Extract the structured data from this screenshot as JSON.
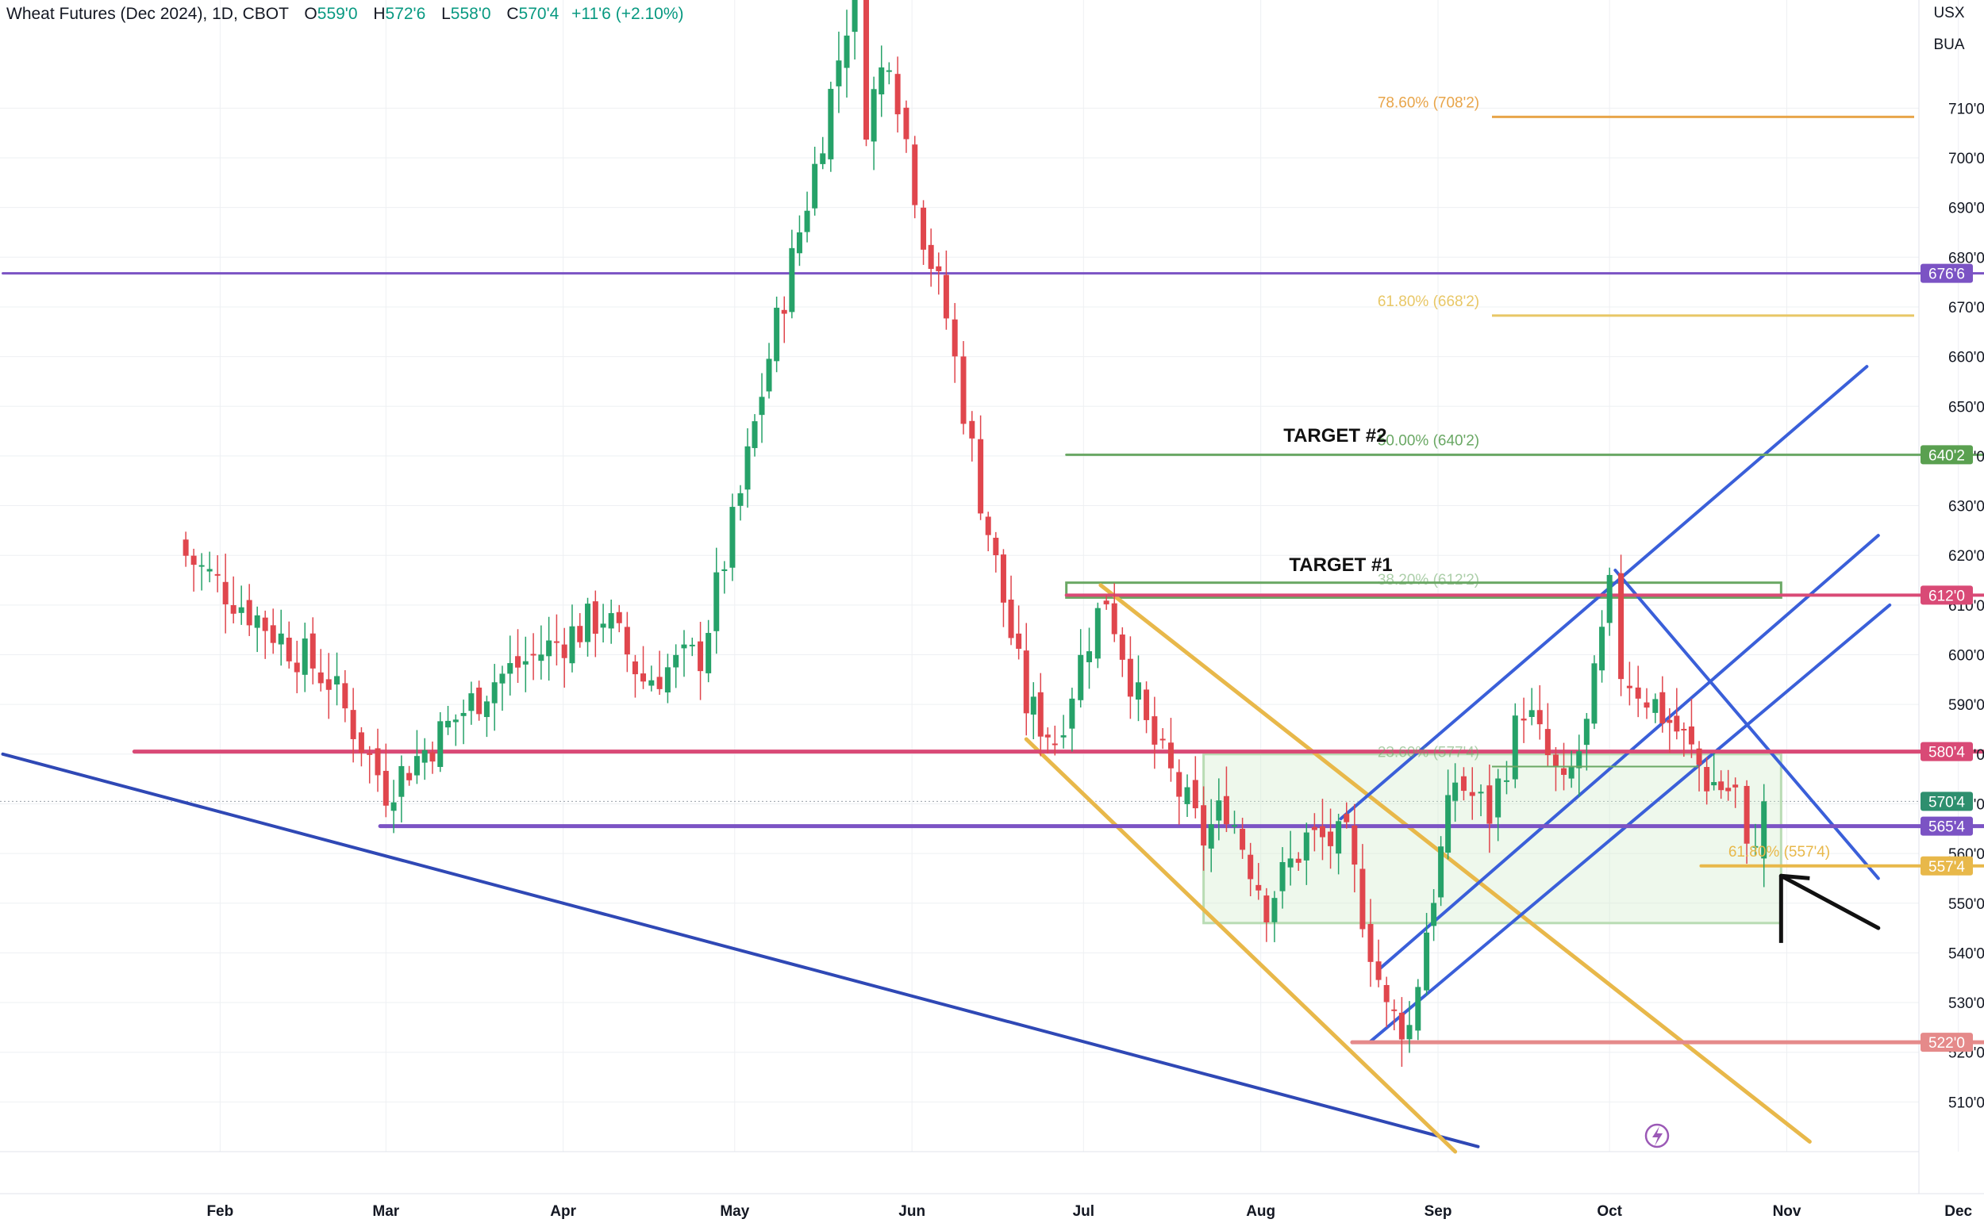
{
  "header": {
    "title": "Wheat Futures (Dec 2024), 1D, CBOT",
    "open_label": "O",
    "open": "559'0",
    "high_label": "H",
    "high": "572'6",
    "low_label": "L",
    "low": "558'0",
    "close_label": "C",
    "close": "570'4",
    "change": "+11'6 (+2.10%)"
  },
  "scale": {
    "currency": "USX",
    "unit": "BUA"
  },
  "colors": {
    "up": "#26a269",
    "down": "#e0464d",
    "purple": "#7b53c4",
    "pink": "#d94a76",
    "green": "#6aa864",
    "gold": "#e8b84a",
    "blue": "#3a5fd9",
    "navy": "#2f48b5",
    "fib_orange": "#e8a54a",
    "fib_yellow": "#e8c766",
    "salmon": "#e58a8a"
  },
  "chart_data": {
    "type": "candlestick",
    "ylim": [
      500,
      722
    ],
    "y_ticks": [
      "510'0",
      "520'0",
      "530'0",
      "540'0",
      "550'0",
      "560'0",
      "570'0",
      "580'0",
      "590'0",
      "600'0",
      "610'0",
      "620'0",
      "630'0",
      "640'0",
      "650'0",
      "660'0",
      "670'0",
      "680'0",
      "690'0",
      "700'0",
      "710'0"
    ],
    "x_ticks": [
      "Feb",
      "Mar",
      "Apr",
      "May",
      "Jun",
      "Jul",
      "Aug",
      "Sep",
      "Oct",
      "Nov",
      "Dec"
    ],
    "annotations": [
      {
        "text": "TARGET #2",
        "date": "2024-08-14",
        "price": 640
      },
      {
        "text": "TARGET #1",
        "date": "2024-08-15",
        "price": 614
      }
    ],
    "fib_levels": [
      {
        "label": "78.60% (708'2)",
        "price": 708.25,
        "color": "#e8a54a"
      },
      {
        "label": "61.80% (668'2)",
        "price": 668.25,
        "color": "#e8c766"
      },
      {
        "label": "50.00% (640'2)",
        "price": 640.25,
        "color": "#6aa864"
      },
      {
        "label": "38.20% (612'2)",
        "price": 612.25,
        "color": "#6aa864"
      },
      {
        "label": "23.60% (577'4)",
        "price": 577.5,
        "color": "#6aa864"
      },
      {
        "label": "61.80% (557'4)",
        "price": 557.5,
        "color": "#e8b84a"
      }
    ],
    "price_tags": [
      {
        "text": "676'6",
        "price": 676.75,
        "color": "#7b53c4"
      },
      {
        "text": "640'2",
        "price": 640.25,
        "color": "#5aa050"
      },
      {
        "text": "612'0",
        "price": 612,
        "color": "#d94a76"
      },
      {
        "text": "580'4",
        "price": 580.5,
        "color": "#d94a76"
      },
      {
        "text": "570'4",
        "price": 570.5,
        "color": "#2e8f6e"
      },
      {
        "text": "565'4",
        "price": 565.5,
        "color": "#7b53c4"
      },
      {
        "text": "557'4",
        "price": 557.5,
        "color": "#e8b84a"
      },
      {
        "text": "522'0",
        "price": 522,
        "color": "#e58a8a"
      }
    ],
    "key_points": [
      {
        "date": "2024-01-26",
        "close": 620
      },
      {
        "date": "2024-02-20",
        "close": 595
      },
      {
        "date": "2024-03-01",
        "close": 573
      },
      {
        "date": "2024-03-20",
        "close": 595
      },
      {
        "date": "2024-04-08",
        "close": 608
      },
      {
        "date": "2024-04-15",
        "close": 595
      },
      {
        "date": "2024-04-25",
        "close": 600
      },
      {
        "date": "2024-05-02",
        "close": 632
      },
      {
        "date": "2024-05-07",
        "close": 660
      },
      {
        "date": "2024-05-15",
        "close": 698
      },
      {
        "date": "2024-05-22",
        "close": 735
      },
      {
        "date": "2024-05-24",
        "close": 708
      },
      {
        "date": "2024-05-28",
        "close": 722
      },
      {
        "date": "2024-06-03",
        "close": 685
      },
      {
        "date": "2024-06-07",
        "close": 668
      },
      {
        "date": "2024-06-13",
        "close": 632
      },
      {
        "date": "2024-06-21",
        "close": 590
      },
      {
        "date": "2024-06-26",
        "close": 583
      },
      {
        "date": "2024-07-02",
        "close": 604
      },
      {
        "date": "2024-07-05",
        "close": 612
      },
      {
        "date": "2024-07-12",
        "close": 585
      },
      {
        "date": "2024-07-22",
        "close": 563
      },
      {
        "date": "2024-07-26",
        "close": 570
      },
      {
        "date": "2024-08-02",
        "close": 550
      },
      {
        "date": "2024-08-09",
        "close": 563
      },
      {
        "date": "2024-08-16",
        "close": 562
      },
      {
        "date": "2024-08-23",
        "close": 528
      },
      {
        "date": "2024-08-27",
        "close": 525
      },
      {
        "date": "2024-08-30",
        "close": 545
      },
      {
        "date": "2024-09-04",
        "close": 575
      },
      {
        "date": "2024-09-10",
        "close": 568
      },
      {
        "date": "2024-09-16",
        "close": 590
      },
      {
        "date": "2024-09-23",
        "close": 572
      },
      {
        "date": "2024-09-27",
        "close": 585
      },
      {
        "date": "2024-10-01",
        "close": 612
      },
      {
        "date": "2024-10-03",
        "close": 597
      },
      {
        "date": "2024-10-09",
        "close": 590
      },
      {
        "date": "2024-10-14",
        "close": 583
      },
      {
        "date": "2024-10-18",
        "close": 575
      },
      {
        "date": "2024-10-23",
        "close": 572
      },
      {
        "date": "2024-10-25",
        "close": 559
      },
      {
        "date": "2024-10-28",
        "close": 570.5
      }
    ]
  }
}
